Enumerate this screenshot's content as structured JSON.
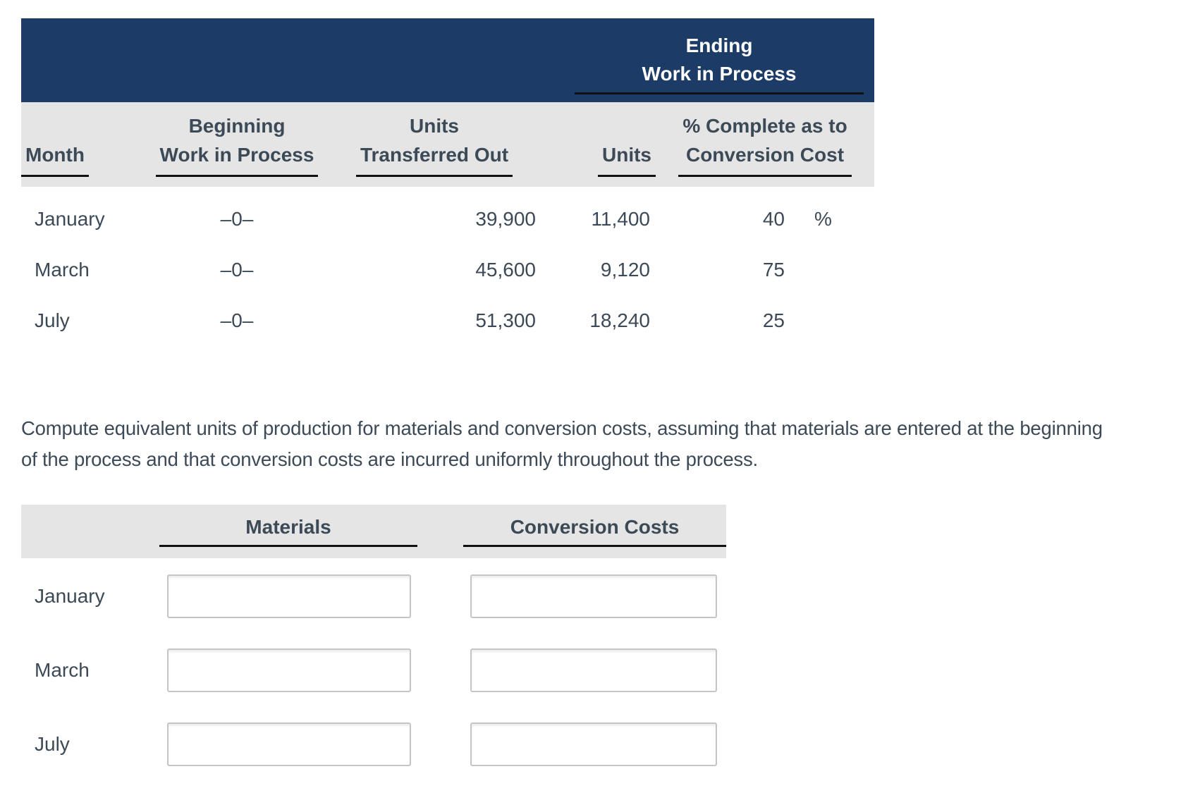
{
  "upper_table": {
    "group_header": {
      "line1": "Ending",
      "line2": "Work in Process"
    },
    "columns": {
      "month": "Month",
      "beginning_wip_line1": "Beginning",
      "beginning_wip_line2": "Work in Process",
      "transferred_line1": "Units",
      "transferred_line2": "Transferred Out",
      "units": "Units",
      "pct_line1": "% Complete as to",
      "pct_line2": "Conversion Cost"
    },
    "rows": [
      {
        "month": "January",
        "beginning_wip": "–0–",
        "units_transferred_out": "39,900",
        "units": "11,400",
        "pct_complete": "40",
        "pct_sign": "%"
      },
      {
        "month": "March",
        "beginning_wip": "–0–",
        "units_transferred_out": "45,600",
        "units": "9,120",
        "pct_complete": "75",
        "pct_sign": ""
      },
      {
        "month": "July",
        "beginning_wip": "–0–",
        "units_transferred_out": "51,300",
        "units": "18,240",
        "pct_complete": "25",
        "pct_sign": ""
      }
    ]
  },
  "instruction": "Compute equivalent units of production for materials and conversion costs, assuming that materials are entered at the beginning of the process and that conversion costs are incurred uniformly throughout the process.",
  "answer_table": {
    "columns": {
      "materials": "Materials",
      "conversion_costs": "Conversion Costs"
    },
    "rows": [
      {
        "month": "January",
        "materials_value": "",
        "conversion_value": ""
      },
      {
        "month": "March",
        "materials_value": "",
        "conversion_value": ""
      },
      {
        "month": "July",
        "materials_value": "",
        "conversion_value": ""
      }
    ]
  },
  "colors": {
    "navy": "#1c3b67",
    "band_gray": "#e5e5e5",
    "text": "#3c4a57",
    "underline": "#111111"
  }
}
